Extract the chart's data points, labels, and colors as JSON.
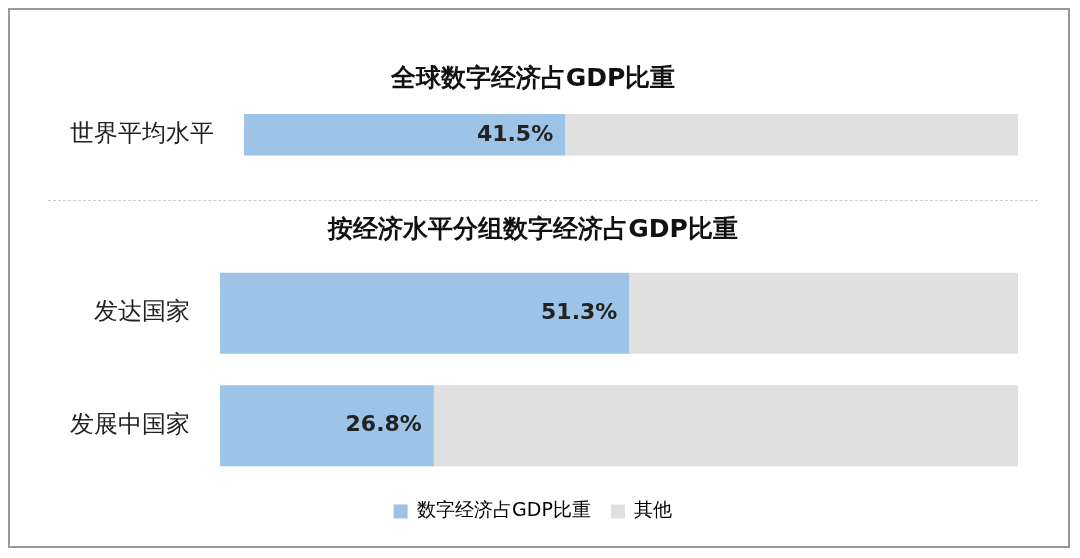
{
  "chart_data": [
    {
      "type": "bar",
      "orientation": "horizontal",
      "stacked": true,
      "title": "全球数字经济占GDP比重",
      "categories": [
        "世界平均水平"
      ],
      "xlim": [
        0,
        100
      ],
      "tick_labels": "y",
      "grid": false,
      "legend": false,
      "series": [
        {
          "color": "#9dc3e6",
          "values": [
            41.5
          ],
          "value_labels": [
            "41.5%"
          ]
        },
        {
          "color": "#e0e0e0",
          "values": [
            58.5
          ],
          "value_labels": [
            null
          ]
        }
      ]
    },
    {
      "type": "bar",
      "orientation": "horizontal",
      "stacked": true,
      "title": "按经济水平分组数字经济占GDP比重",
      "categories": [
        "发达国家",
        "发展中国家"
      ],
      "xlim": [
        0,
        100
      ],
      "tick_labels": "y",
      "grid": false,
      "legend": "bottom",
      "series": [
        {
          "name": "数字经济占GDP比重",
          "color": "#9dc3e6",
          "values": [
            51.3,
            26.8
          ],
          "value_labels": [
            "51.3%",
            "26.8%"
          ]
        },
        {
          "name": "其他",
          "color": "#e0e0e0",
          "values": [
            48.7,
            73.2
          ],
          "value_labels": [
            null,
            null
          ]
        }
      ]
    }
  ]
}
